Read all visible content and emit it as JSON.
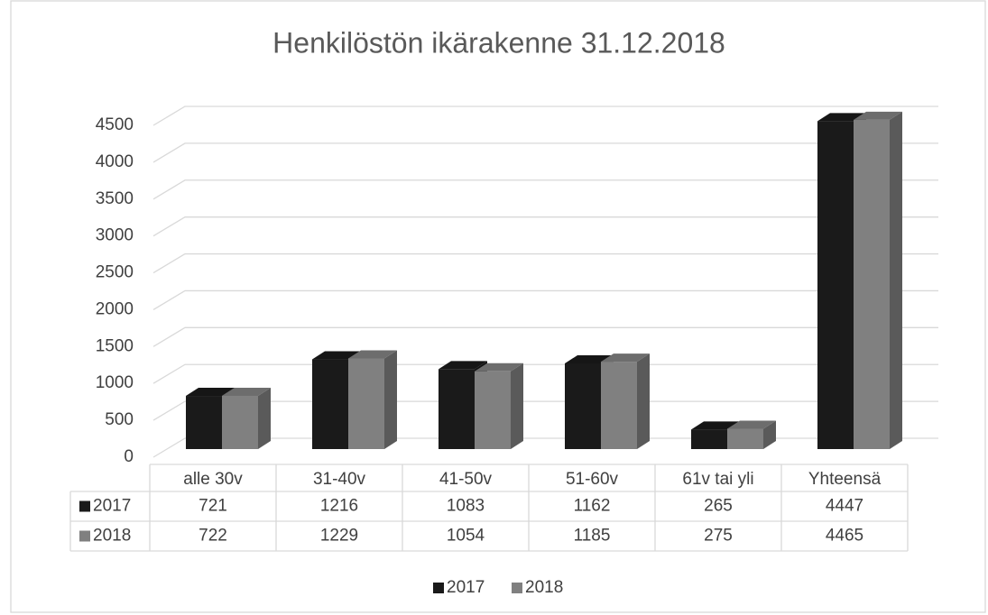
{
  "chart_data": {
    "type": "bar3d",
    "title": "Henkilöstön ikärakenne 31.12.2018",
    "categories": [
      "alle 30v",
      "31-40v",
      "41-50v",
      "51-60v",
      "61v tai yli",
      "Yhteensä"
    ],
    "series": [
      {
        "name": "2017",
        "color": "#1a1a1a",
        "values": [
          721,
          1216,
          1083,
          1162,
          265,
          4447
        ]
      },
      {
        "name": "2018",
        "color": "#808080",
        "values": [
          722,
          1229,
          1054,
          1185,
          275,
          4465
        ]
      }
    ],
    "ylim": [
      0,
      4500
    ],
    "yticks": [
      0,
      500,
      1000,
      1500,
      2000,
      2500,
      3000,
      3500,
      4000,
      4500
    ],
    "grid": true,
    "data_table": true,
    "legend": "bottom"
  }
}
